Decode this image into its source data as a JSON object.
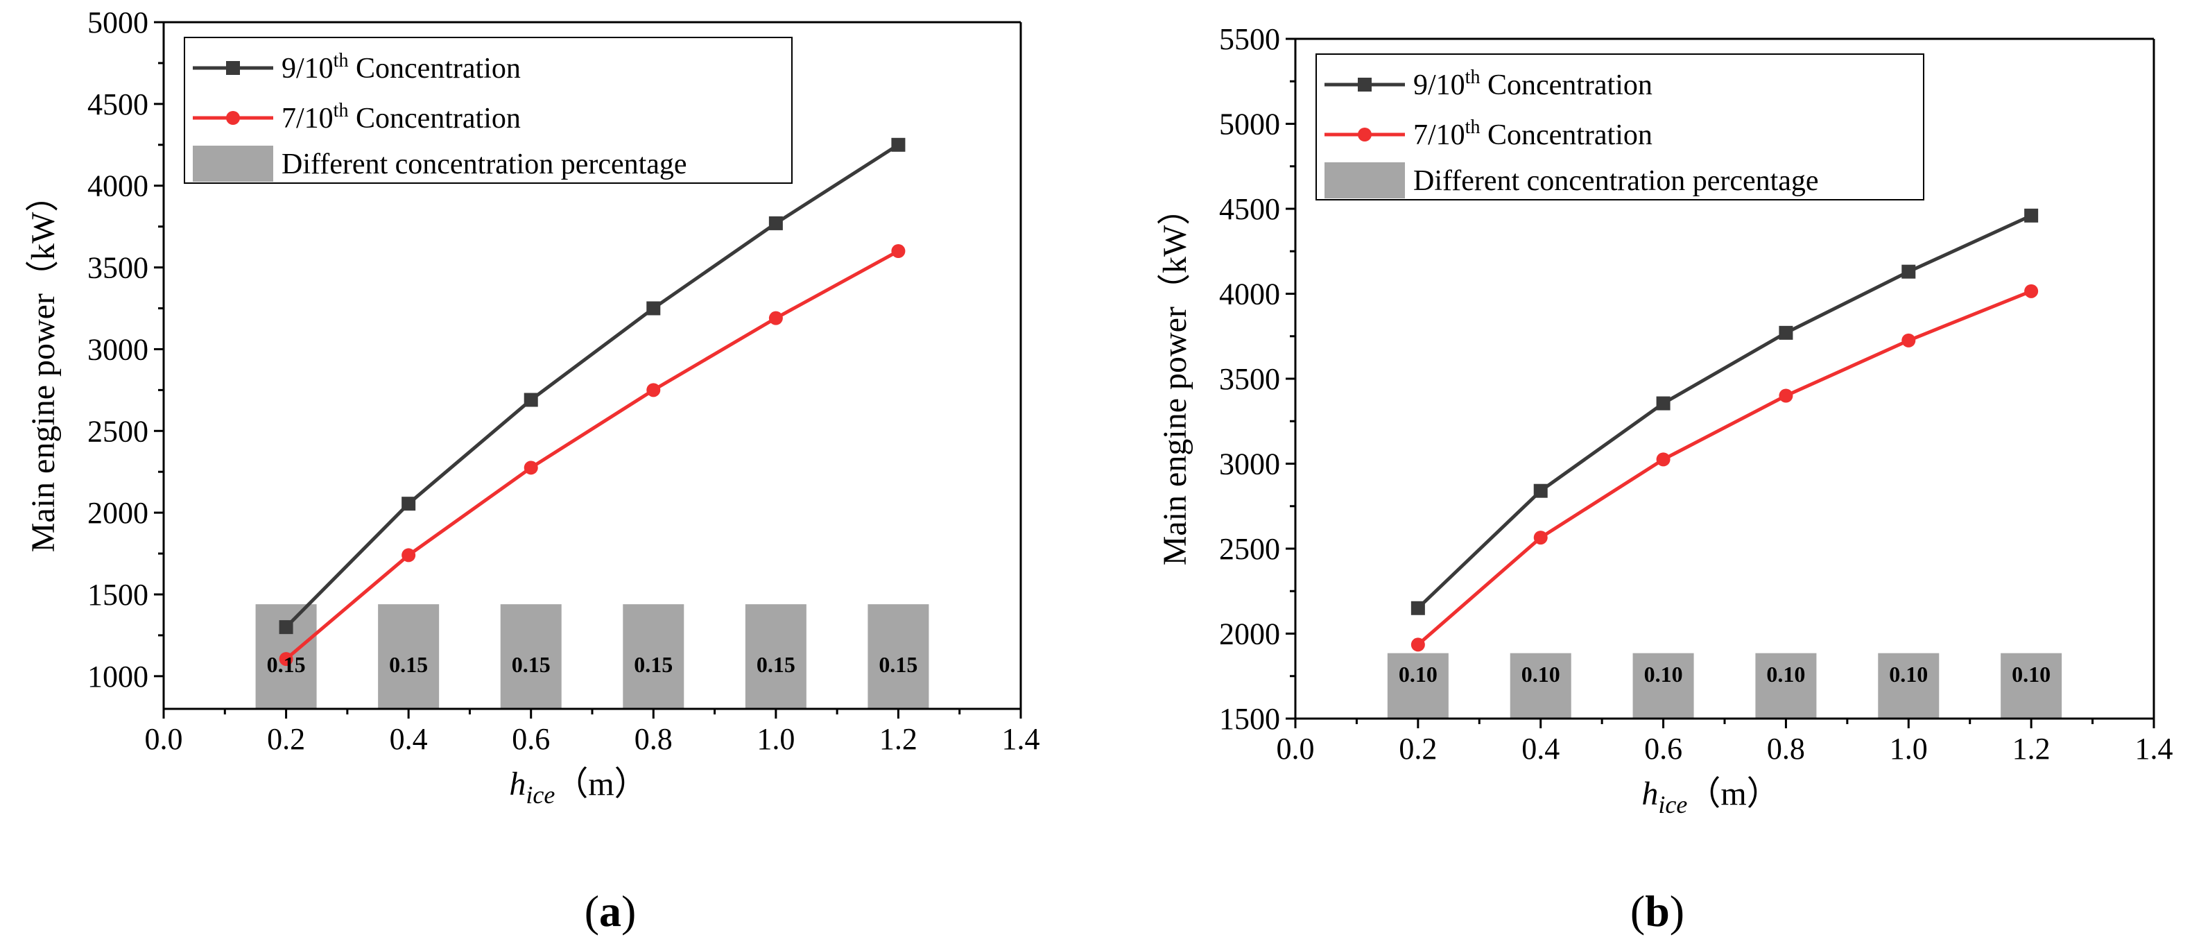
{
  "chart_data": [
    {
      "type": "line",
      "panel_label": "(a)",
      "x": [
        0.2,
        0.4,
        0.6,
        0.8,
        1.0,
        1.2
      ],
      "xlim": [
        0.0,
        1.4
      ],
      "ylim": [
        800,
        5000
      ],
      "xticks": [
        "0.0",
        "0.2",
        "0.4",
        "0.6",
        "0.8",
        "1.0",
        "1.2",
        "1.4"
      ],
      "yticks": [
        "1000",
        "1500",
        "2000",
        "2500",
        "3000",
        "3500",
        "4000",
        "4500",
        "5000"
      ],
      "ylabel": "Main engine power（kW）",
      "xlabel_main": "h",
      "xlabel_sub": "ice",
      "xlabel_unit": "（m）",
      "series": [
        {
          "name_pre": "9/10",
          "name_sup": "th",
          "name_post": " Concentration",
          "color": "#3a3a3a",
          "marker": "square",
          "values": [
            1300,
            2055,
            2690,
            3250,
            3770,
            4250
          ]
        },
        {
          "name_pre": "7/10",
          "name_sup": "th",
          "name_post": " Concentration",
          "color": "#f03030",
          "marker": "circle",
          "values": [
            1105,
            1740,
            2275,
            2750,
            3190,
            3600
          ]
        }
      ],
      "bars": {
        "name": "Different concentration percentage",
        "color": "#a6a6a6",
        "value_top": 1440,
        "labels": [
          "0.15",
          "0.15",
          "0.15",
          "0.15",
          "0.15",
          "0.15"
        ]
      },
      "legend_position": "top-left"
    },
    {
      "type": "line",
      "panel_label": "(b)",
      "x": [
        0.2,
        0.4,
        0.6,
        0.8,
        1.0,
        1.2
      ],
      "xlim": [
        0.0,
        1.4
      ],
      "ylim": [
        1500,
        5500
      ],
      "xticks": [
        "0.0",
        "0.2",
        "0.4",
        "0.6",
        "0.8",
        "1.0",
        "1.2",
        "1.4"
      ],
      "yticks": [
        "1500",
        "2000",
        "2500",
        "3000",
        "3500",
        "4000",
        "4500",
        "5000",
        "5500"
      ],
      "ylabel": "Main engine power（kW）",
      "xlabel_main": "h",
      "xlabel_sub": "ice",
      "xlabel_unit": "（m）",
      "series": [
        {
          "name_pre": "9/10",
          "name_sup": "th",
          "name_post": " Concentration",
          "color": "#3a3a3a",
          "marker": "square",
          "values": [
            2150,
            2840,
            3355,
            3770,
            4130,
            4460
          ]
        },
        {
          "name_pre": "7/10",
          "name_sup": "th",
          "name_post": " Concentration",
          "color": "#f03030",
          "marker": "circle",
          "values": [
            1935,
            2565,
            3025,
            3400,
            3725,
            4015
          ]
        }
      ],
      "bars": {
        "name": "Different concentration percentage",
        "color": "#a6a6a6",
        "value_top": 1885,
        "labels": [
          "0.10",
          "0.10",
          "0.10",
          "0.10",
          "0.10",
          "0.10"
        ]
      },
      "legend_position": "top-left"
    }
  ]
}
